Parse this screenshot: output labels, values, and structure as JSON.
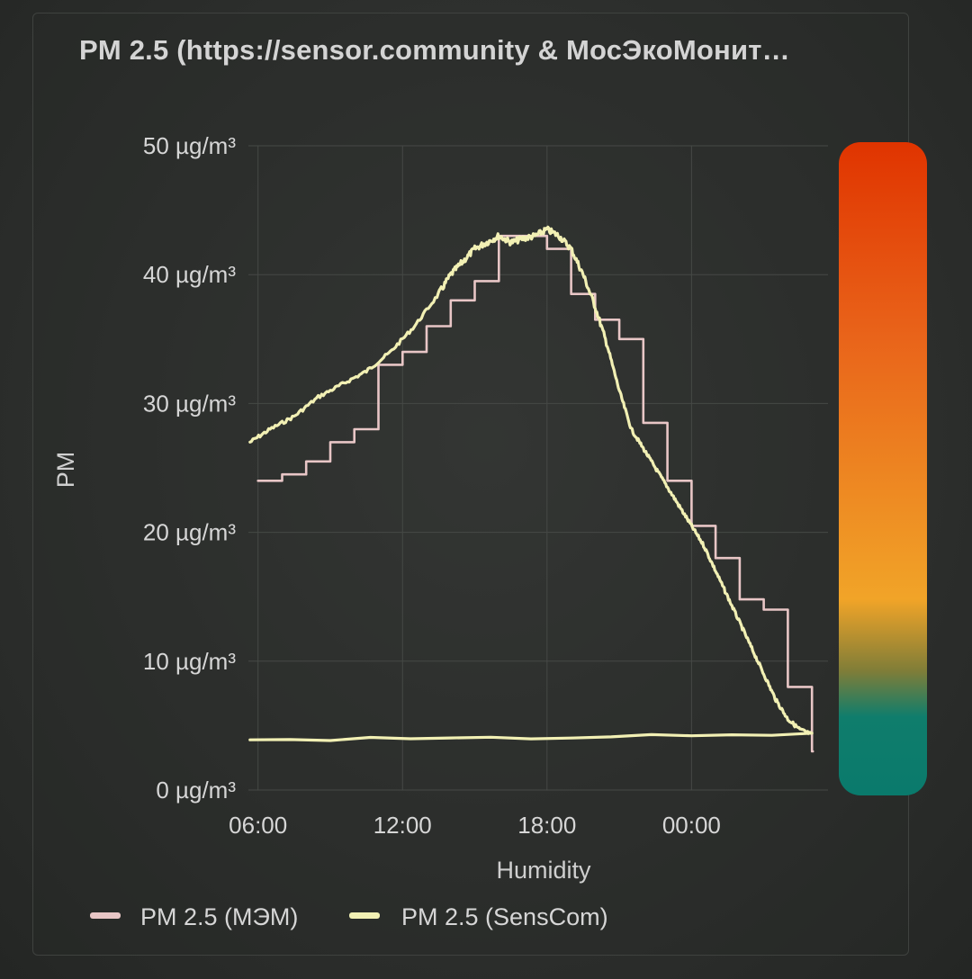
{
  "panel": {
    "title": "PM 2.5 (https://sensor.community & МосЭкоМонит…"
  },
  "colors": {
    "mem": "#e8c6c6",
    "senscom": "#f2f0b4",
    "grid": "#464946",
    "gauge_stops": [
      "#e03400",
      "#e9641a",
      "#f1a428",
      "#7f7d38",
      "#0f7d6c",
      "#0a7a6c"
    ]
  },
  "chart_data": {
    "type": "line",
    "title": "",
    "xlabel": "Humidity",
    "ylabel": "PM",
    "ylim": [
      0,
      50
    ],
    "yticks": [
      0,
      10,
      20,
      30,
      40,
      50
    ],
    "ytick_labels": [
      "0 µg/m³",
      "10 µg/m³",
      "20 µg/m³",
      "30 µg/m³",
      "40 µg/m³",
      "50 µg/m³"
    ],
    "xlim": [
      "05:36",
      "05:40 (+1 day)"
    ],
    "xticks": [
      "06:00",
      "12:00",
      "18:00",
      "00:00"
    ],
    "grid": true,
    "legend_position": "bottom-left",
    "series": [
      {
        "name": "PM 2.5 (МЭМ)",
        "style": "step",
        "x": [
          "06:00",
          "07:00",
          "08:00",
          "09:00",
          "10:00",
          "11:00",
          "12:00",
          "13:00",
          "14:00",
          "15:00",
          "16:00",
          "17:00",
          "18:00",
          "19:00",
          "20:00",
          "21:00",
          "22:00",
          "23:00",
          "00:00",
          "01:00",
          "02:00",
          "03:00",
          "04:00",
          "05:00"
        ],
        "values": [
          24,
          24.5,
          25.5,
          27,
          28,
          33,
          34,
          36,
          38,
          39.5,
          43,
          43,
          42,
          38.5,
          36.5,
          35,
          28.5,
          24,
          20.5,
          18,
          14.8,
          14,
          8,
          3
        ]
      },
      {
        "name": "PM 2.5 (SensCom)",
        "style": "line",
        "x": [
          "05:40",
          "06:30",
          "07:30",
          "08:30",
          "09:30",
          "10:30",
          "11:30",
          "12:30",
          "13:30",
          "14:00",
          "14:30",
          "15:00",
          "15:30",
          "16:00",
          "16:30",
          "17:00",
          "17:30",
          "18:00",
          "18:30",
          "19:00",
          "19:30",
          "20:00",
          "20:30",
          "21:00",
          "21:30",
          "22:00",
          "22:30",
          "23:00",
          "23:30",
          "00:00",
          "00:30",
          "01:00",
          "01:30",
          "02:00",
          "02:30",
          "03:00",
          "03:30",
          "04:00",
          "04:30",
          "05:00",
          "05:40"
        ],
        "values": [
          27,
          28,
          29,
          30.5,
          31.5,
          32.5,
          34,
          36,
          38.5,
          40,
          41,
          42,
          42.5,
          43,
          42.5,
          42.8,
          43,
          43.5,
          43,
          42,
          40,
          37.5,
          34.5,
          31,
          28,
          26.5,
          25,
          23.5,
          22,
          20.5,
          19,
          17,
          15,
          13,
          11,
          9,
          7,
          5.5,
          4.7,
          4.3,
          3.9
        ]
      }
    ]
  },
  "legend": {
    "items": [
      {
        "label": "PM 2.5 (МЭМ)"
      },
      {
        "label": "PM 2.5 (SensCom)"
      }
    ]
  }
}
